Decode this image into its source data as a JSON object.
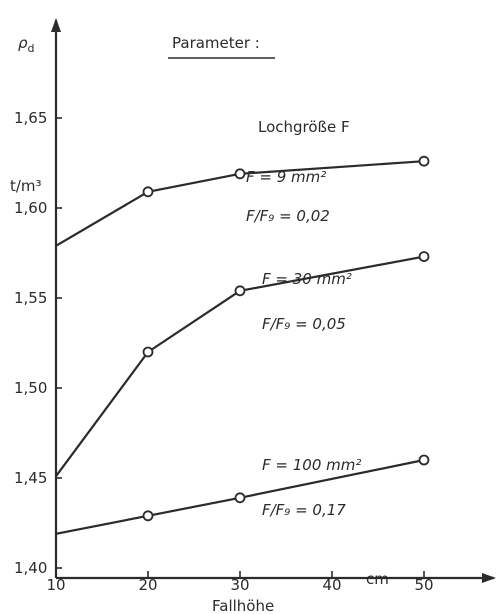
{
  "chart_data": {
    "type": "line",
    "title": "Parameter :",
    "ylabel_symbol": "ρ",
    "ylabel_subscript": "d",
    "y_unit": "t/m³",
    "xlabel": "Fallhöhe",
    "x_unit": "cm",
    "xlim": [
      10,
      50
    ],
    "ylim": [
      1.4,
      1.65
    ],
    "x_ticks": [
      {
        "value": 10,
        "label": "10"
      },
      {
        "value": 20,
        "label": "20"
      },
      {
        "value": 30,
        "label": "30"
      },
      {
        "value": 40,
        "label": "40"
      },
      {
        "value": 50,
        "label": "50"
      }
    ],
    "y_ticks": [
      {
        "value": 1.4,
        "label": "1,40"
      },
      {
        "value": 1.45,
        "label": "1,45"
      },
      {
        "value": 1.5,
        "label": "1,50"
      },
      {
        "value": 1.55,
        "label": "1,55"
      },
      {
        "value": 1.6,
        "label": "1,60"
      },
      {
        "value": 1.65,
        "label": "1,65"
      }
    ],
    "grid": false,
    "legend_heading": "Lochgröße F",
    "series": [
      {
        "name": "F = 9 mm²",
        "ratio_label": "F/F₉ = 0,02",
        "x": [
          10,
          20,
          30,
          50
        ],
        "y": [
          1.579,
          1.609,
          1.619,
          1.626
        ],
        "markers": [
          false,
          true,
          true,
          true
        ]
      },
      {
        "name": "F = 30 mm²",
        "ratio_label": "F/F₉ = 0,05",
        "x": [
          10,
          20,
          30,
          50
        ],
        "y": [
          1.451,
          1.52,
          1.554,
          1.573
        ],
        "markers": [
          false,
          true,
          true,
          true
        ]
      },
      {
        "name": "F = 100 mm²",
        "ratio_label": "F/F₉ = 0,17",
        "x": [
          10,
          20,
          30,
          50
        ],
        "y": [
          1.419,
          1.429,
          1.439,
          1.46
        ],
        "markers": [
          false,
          true,
          true,
          true
        ]
      }
    ]
  },
  "colors": {
    "ink": "#2b2b2b",
    "background": "#ffffff"
  }
}
